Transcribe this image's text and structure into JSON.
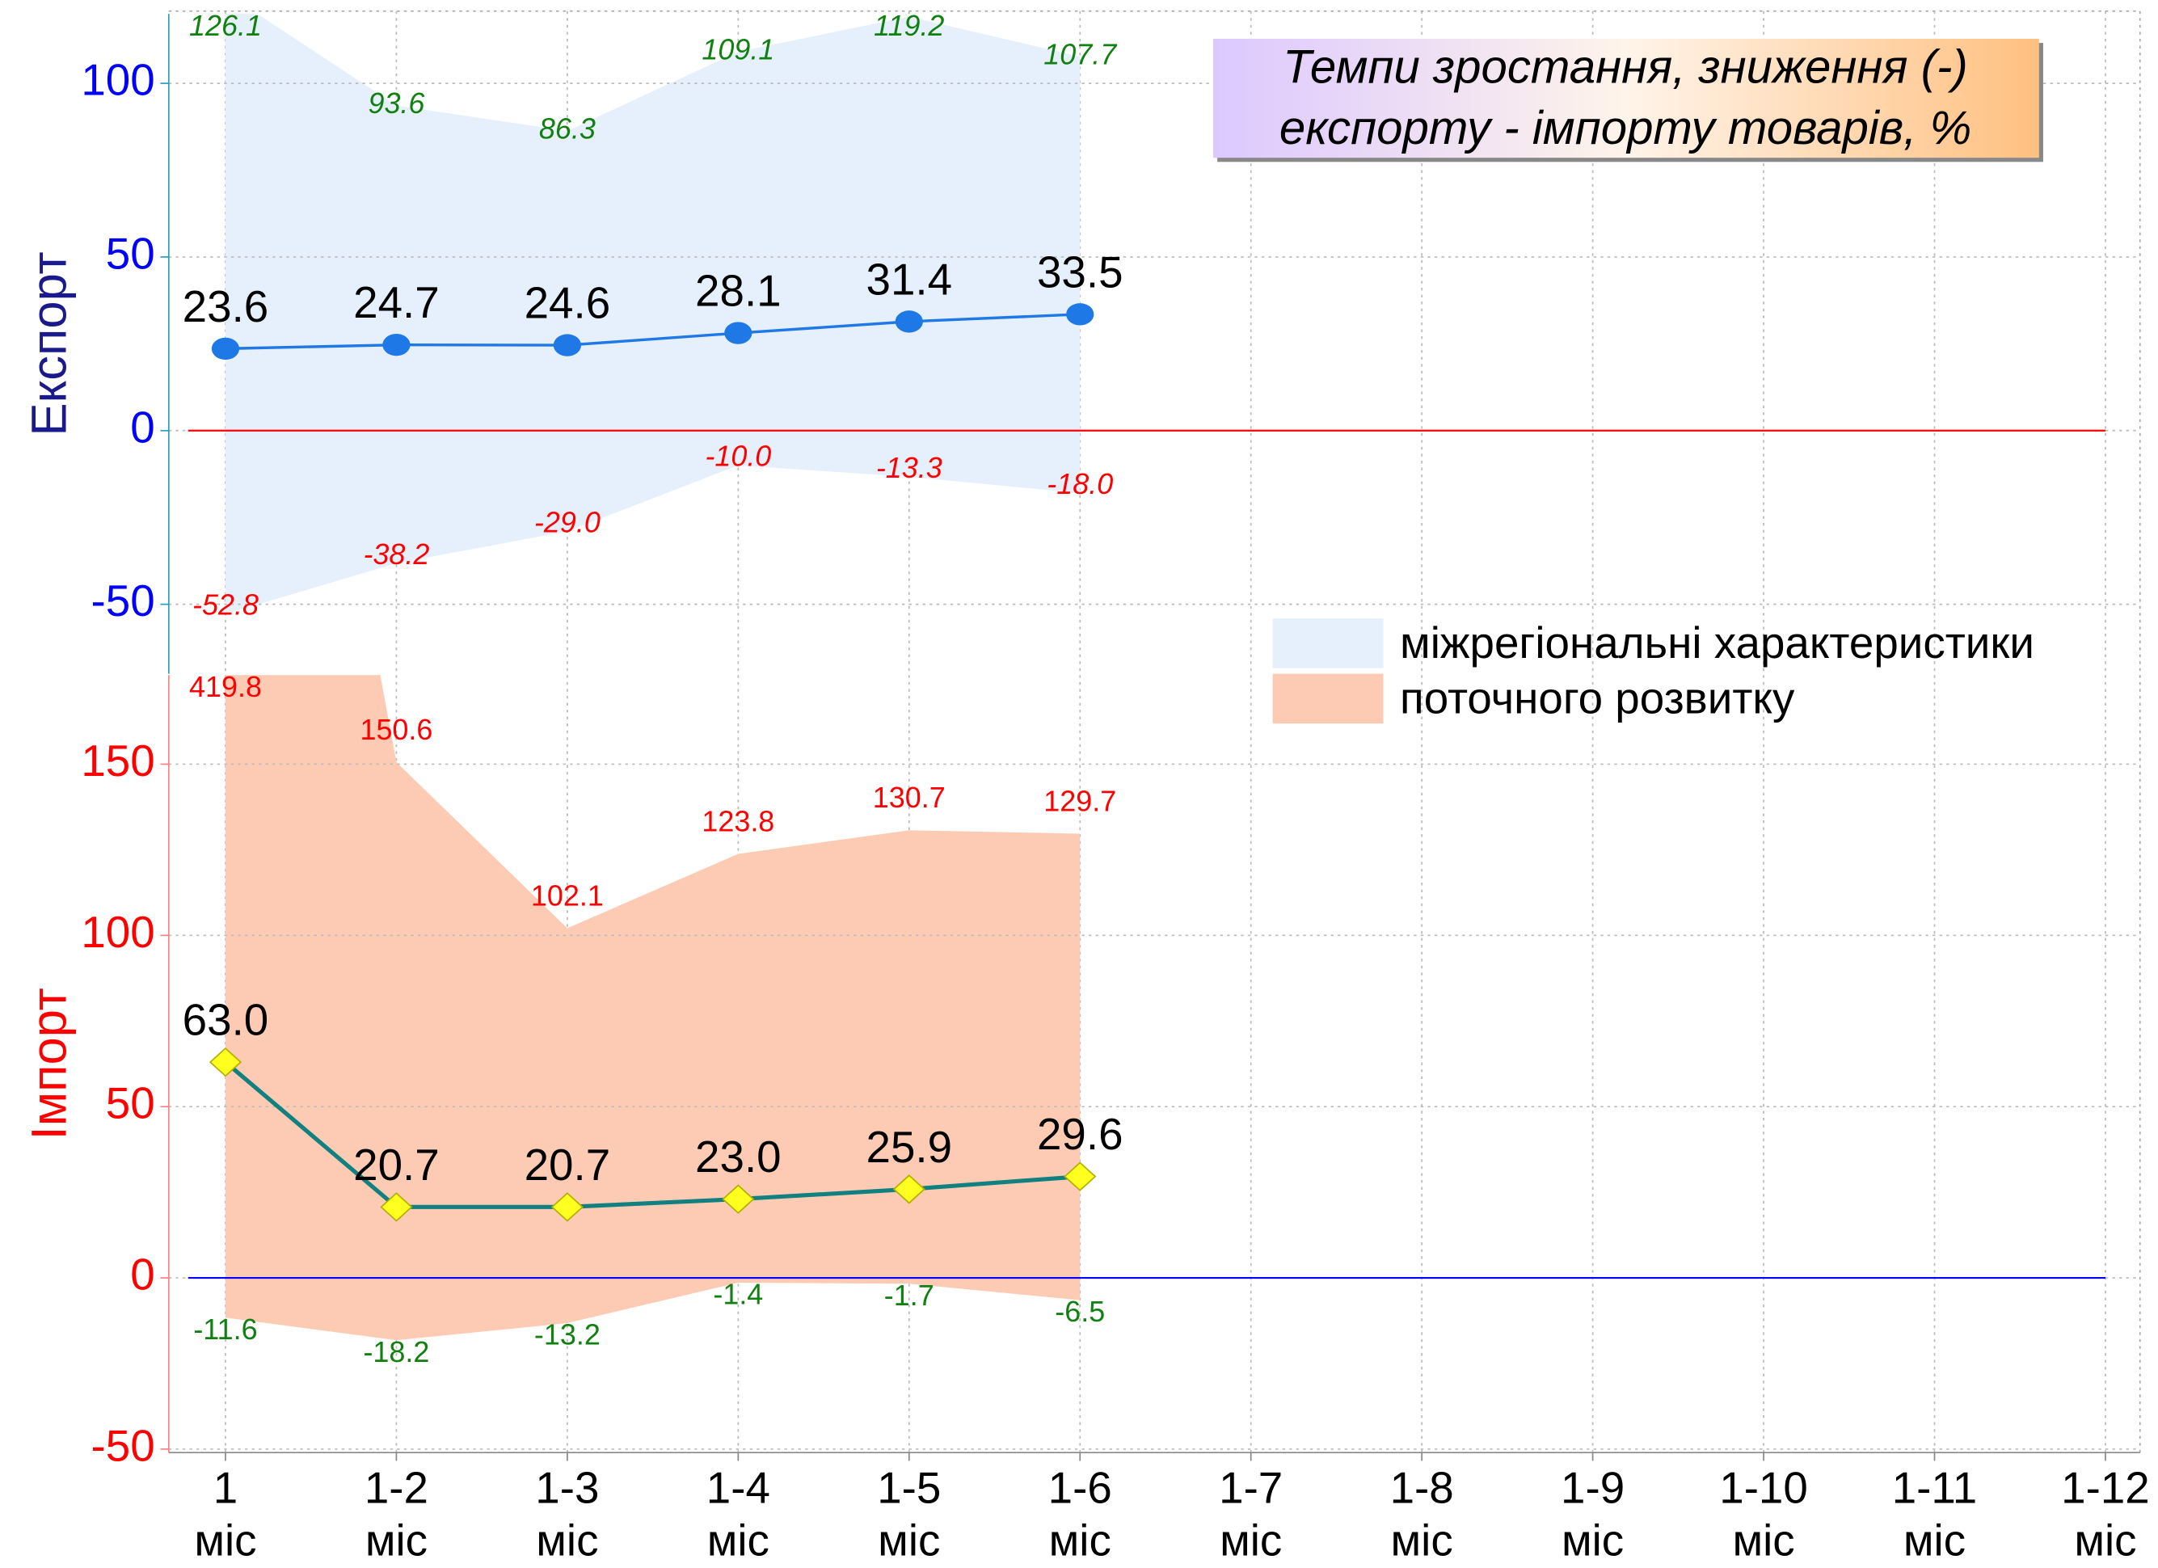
{
  "chart_data": {
    "type": "line",
    "title": [
      "Темпи зростання, зниження (-)",
      "експорту - імпорту товарів, %"
    ],
    "categories": [
      "1",
      "1-2",
      "1-3",
      "1-4",
      "1-5",
      "1-6",
      "1-7",
      "1-8",
      "1-9",
      "1-10",
      "1-11",
      "1-12"
    ],
    "x_unit": "міс",
    "grid": true,
    "panels": [
      {
        "y_label": "Експорт",
        "ylim": [
          -70,
          120
        ],
        "yticks": [
          -50,
          0,
          50,
          100
        ],
        "tick_color": "#0000ff",
        "axis_color": "#2aa0c0",
        "label_color": "#1a1a8c",
        "zero_color": "#ff0000",
        "line": {
          "color": "#1e78e6",
          "marker": "circle",
          "marker_color": "#1e78e6",
          "values": [
            23.6,
            24.7,
            24.6,
            28.1,
            31.4,
            33.5
          ],
          "value_labels": [
            "23.6",
            "24.7",
            "24.6",
            "28.1",
            "31.4",
            "33.5"
          ]
        },
        "band": {
          "name": "міжрегіональні характеристики",
          "color": "#e6f0fc",
          "upper": [
            126.1,
            93.6,
            86.3,
            109.1,
            119.2,
            107.7
          ],
          "lower": [
            -52.8,
            -38.2,
            -29.0,
            -10.0,
            -13.3,
            -18.0
          ],
          "upper_labels": [
            "126.1",
            "93.6",
            "86.3",
            "109.1",
            "119.2",
            "107.7"
          ],
          "lower_labels": [
            "-52.8",
            "-38.2",
            "-29.0",
            "-10.0",
            "-13.3",
            "-18.0"
          ],
          "upper_color": "#108010",
          "lower_color": "#ff0000",
          "italic": true
        }
      },
      {
        "y_label": "Імпорт",
        "ylim": [
          -51,
          176
        ],
        "yticks": [
          -50,
          0,
          50,
          100,
          150
        ],
        "tick_color": "#ff0000",
        "axis_color": "#ff8080",
        "label_color": "#ff0000",
        "zero_color": "#0000ff",
        "line": {
          "color": "#108080",
          "marker": "diamond",
          "marker_color": "#ffff20",
          "values": [
            63.0,
            20.7,
            20.7,
            23.0,
            25.9,
            29.6
          ],
          "value_labels": [
            "63.0",
            "20.7",
            "20.7",
            "23.0",
            "25.9",
            "29.6"
          ]
        },
        "band": {
          "name": "поточного розвитку",
          "color": "#fdcbb3",
          "upper": [
            419.8,
            150.6,
            102.1,
            123.8,
            130.7,
            129.7
          ],
          "lower": [
            -11.6,
            -18.2,
            -13.2,
            -1.4,
            -1.7,
            -6.5
          ],
          "upper_labels": [
            "419.8",
            "150.6",
            "102.1",
            "123.8",
            "130.7",
            "129.7"
          ],
          "lower_labels": [
            "-11.6",
            "-18.2",
            "-13.2",
            "-1.4",
            "-1.7",
            "-6.5"
          ],
          "upper_color": "#ff0000",
          "lower_color": "#108010",
          "italic": false
        }
      }
    ]
  }
}
